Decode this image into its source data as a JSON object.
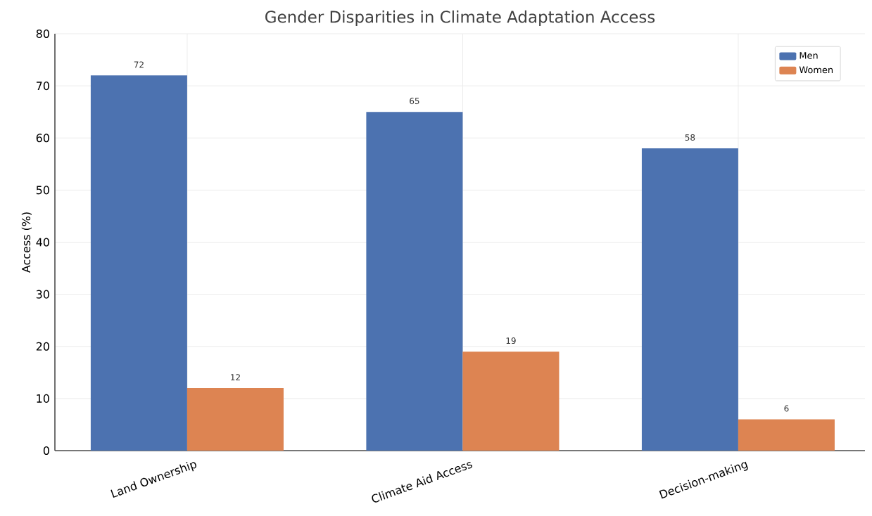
{
  "chart_data": {
    "type": "bar",
    "title": "Gender Disparities in Climate Adaptation Access",
    "ylabel": "Access (%)",
    "categories": [
      "Land Ownership",
      "Climate Aid Access",
      "Decision-making"
    ],
    "series": [
      {
        "name": "Men",
        "color": "#4c72b0",
        "values": [
          72,
          65,
          58
        ]
      },
      {
        "name": "Women",
        "color": "#dd8452",
        "values": [
          12,
          19,
          6
        ]
      }
    ],
    "ylim": [
      0,
      80
    ],
    "yticks": [
      0,
      10,
      20,
      30,
      40,
      50,
      60,
      70,
      80
    ],
    "grid": true,
    "legend": "top right",
    "data_labels": true
  }
}
